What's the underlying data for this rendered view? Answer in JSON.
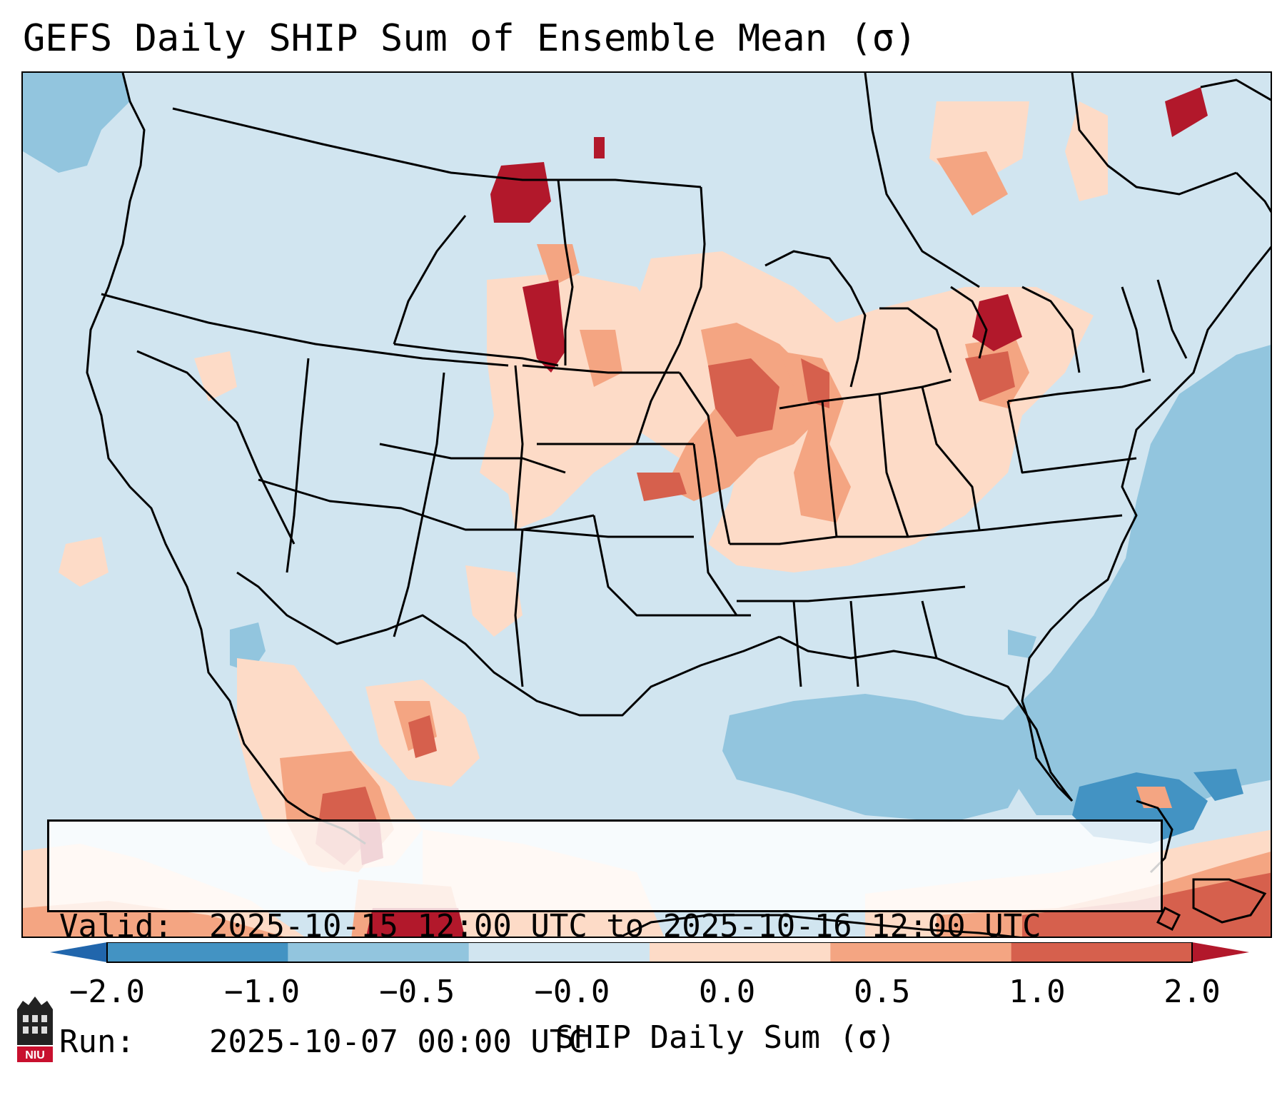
{
  "title": "GEFS Daily SHIP Sum of Ensemble Mean (σ)",
  "info": {
    "valid_label": "Valid:",
    "valid_value": "2025-10-15 12:00 UTC to 2025-10-16 12:00 UTC",
    "run_label": "Run:",
    "run_value": "2025-10-07 00:00 UTC"
  },
  "colorbar": {
    "label": "SHIP Daily Sum (σ)",
    "ticks": [
      "−2.0",
      "−1.0",
      "−0.5",
      "−0.0",
      "0.0",
      "0.5",
      "1.0",
      "2.0"
    ],
    "colors": [
      "#2166ac",
      "#4393c3",
      "#92c5de",
      "#d1e5f0",
      "#fddbc7",
      "#f4a582",
      "#d6604d",
      "#b2182b"
    ],
    "extend": "both"
  },
  "legend_bins": [
    "< -2.0",
    "-2.0 to -1.0",
    "-1.0 to -0.5",
    "-0.5 to 0.0",
    "0.0 to 0.5",
    "0.5 to 1.0",
    "1.0 to 2.0",
    "> 2.0"
  ],
  "logo_text": "NIU",
  "icons": {
    "logo": "niu-logo-icon"
  }
}
